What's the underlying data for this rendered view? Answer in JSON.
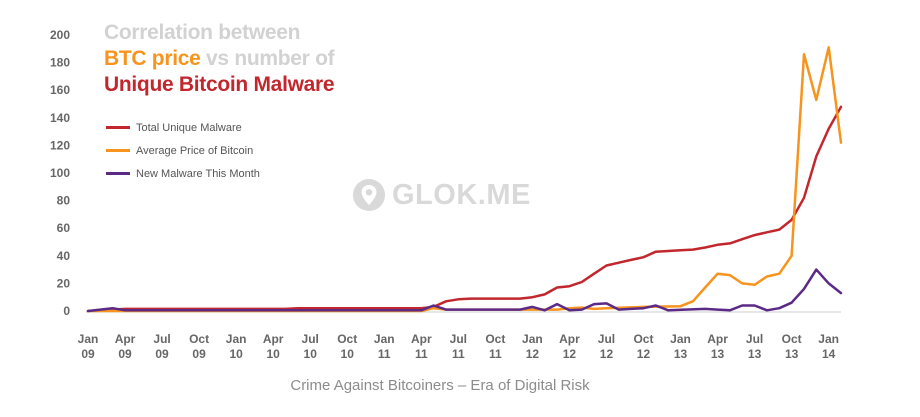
{
  "title": {
    "line1": "Correlation between",
    "btc": "BTC price",
    "vs": " vs ",
    "number_of": "number of",
    "line3": "Unique Bitcoin Malware"
  },
  "watermark": "GLOK.ME",
  "caption": "Crime Against Bitcoiners – Era of Digital Risk",
  "colors": {
    "total": "#c1272d",
    "price": "#f7941d",
    "new": "#5b2a86",
    "title_grey": "#d2d2d2",
    "axis": "#cccccc"
  },
  "chart_data": {
    "type": "line",
    "ylim": [
      0,
      200
    ],
    "yticks": [
      0,
      20,
      40,
      60,
      80,
      100,
      120,
      140,
      160,
      180,
      200
    ],
    "xlim": [
      0,
      61
    ],
    "xticks": [
      {
        "x": 0,
        "l1": "Jan",
        "l2": "09"
      },
      {
        "x": 3,
        "l1": "Apr",
        "l2": "09"
      },
      {
        "x": 6,
        "l1": "Jul",
        "l2": "09"
      },
      {
        "x": 9,
        "l1": "Oct",
        "l2": "09"
      },
      {
        "x": 12,
        "l1": "Jan",
        "l2": "10"
      },
      {
        "x": 15,
        "l1": "Apr",
        "l2": "10"
      },
      {
        "x": 18,
        "l1": "Jul",
        "l2": "10"
      },
      {
        "x": 21,
        "l1": "Oct",
        "l2": "10"
      },
      {
        "x": 24,
        "l1": "Jan",
        "l2": "11"
      },
      {
        "x": 27,
        "l1": "Apr",
        "l2": "11"
      },
      {
        "x": 30,
        "l1": "Jul",
        "l2": "11"
      },
      {
        "x": 33,
        "l1": "Oct",
        "l2": "11"
      },
      {
        "x": 36,
        "l1": "Jan",
        "l2": "12"
      },
      {
        "x": 39,
        "l1": "Apr",
        "l2": "12"
      },
      {
        "x": 42,
        "l1": "Jul",
        "l2": "12"
      },
      {
        "x": 45,
        "l1": "Oct",
        "l2": "12"
      },
      {
        "x": 48,
        "l1": "Jan",
        "l2": "13"
      },
      {
        "x": 51,
        "l1": "Apr",
        "l2": "13"
      },
      {
        "x": 54,
        "l1": "Jul",
        "l2": "13"
      },
      {
        "x": 57,
        "l1": "Oct",
        "l2": "13"
      },
      {
        "x": 60,
        "l1": "Jan",
        "l2": "14"
      }
    ],
    "legend": "top-left",
    "grid": false,
    "series": [
      {
        "name": "Total Unique Malware",
        "color": "#c1272d",
        "points": [
          [
            0,
            0
          ],
          [
            1,
            0.5
          ],
          [
            2,
            1
          ],
          [
            3,
            1.5
          ],
          [
            4,
            1.5
          ],
          [
            10,
            1.5
          ],
          [
            16,
            1.5
          ],
          [
            17,
            2
          ],
          [
            27,
            2
          ],
          [
            28,
            3
          ],
          [
            29,
            7
          ],
          [
            30,
            8.5
          ],
          [
            31,
            9
          ],
          [
            35,
            9
          ],
          [
            36,
            10
          ],
          [
            37,
            12
          ],
          [
            38,
            17
          ],
          [
            39,
            18
          ],
          [
            40,
            21
          ],
          [
            41,
            27
          ],
          [
            42,
            33
          ],
          [
            43,
            35
          ],
          [
            44,
            37
          ],
          [
            45,
            39
          ],
          [
            46,
            43
          ],
          [
            47,
            43.5
          ],
          [
            48,
            44
          ],
          [
            49,
            44.5
          ],
          [
            50,
            46
          ],
          [
            51,
            48
          ],
          [
            52,
            49
          ],
          [
            53,
            52
          ],
          [
            54,
            55
          ],
          [
            55,
            57
          ],
          [
            56,
            59
          ],
          [
            57,
            66
          ],
          [
            58,
            82
          ],
          [
            59,
            112
          ],
          [
            60,
            132
          ],
          [
            61,
            148
          ]
        ]
      },
      {
        "name": "Average Price of Bitcoin",
        "color": "#f7941d",
        "points": [
          [
            0,
            0
          ],
          [
            27,
            0
          ],
          [
            28,
            2
          ],
          [
            29,
            1
          ],
          [
            36,
            1
          ],
          [
            38,
            1
          ],
          [
            39,
            2
          ],
          [
            40,
            2.5
          ],
          [
            41,
            1.5
          ],
          [
            42,
            2
          ],
          [
            45,
            3
          ],
          [
            48,
            3.5
          ],
          [
            49,
            7
          ],
          [
            50,
            17
          ],
          [
            51,
            27
          ],
          [
            52,
            26
          ],
          [
            53,
            20
          ],
          [
            54,
            19
          ],
          [
            55,
            25
          ],
          [
            56,
            27
          ],
          [
            57,
            40
          ],
          [
            58,
            186
          ],
          [
            59,
            153
          ],
          [
            60,
            191
          ],
          [
            61,
            122
          ]
        ]
      },
      {
        "name": "New Malware This Month",
        "color": "#5b2a86",
        "points": [
          [
            0,
            0
          ],
          [
            1,
            1
          ],
          [
            2,
            2
          ],
          [
            3,
            0.5
          ],
          [
            12,
            0.5
          ],
          [
            27,
            0.5
          ],
          [
            28,
            4
          ],
          [
            29,
            1
          ],
          [
            35,
            1
          ],
          [
            36,
            3
          ],
          [
            37,
            0.5
          ],
          [
            38,
            5
          ],
          [
            39,
            0.5
          ],
          [
            40,
            1
          ],
          [
            41,
            5
          ],
          [
            42,
            5.5
          ],
          [
            43,
            1
          ],
          [
            44,
            1.5
          ],
          [
            45,
            2
          ],
          [
            46,
            4
          ],
          [
            47,
            0.5
          ],
          [
            50,
            1.5
          ],
          [
            51,
            1
          ],
          [
            52,
            0.5
          ],
          [
            53,
            4
          ],
          [
            54,
            4
          ],
          [
            55,
            0.5
          ],
          [
            56,
            2
          ],
          [
            57,
            6
          ],
          [
            58,
            16
          ],
          [
            59,
            30
          ],
          [
            60,
            20
          ],
          [
            61,
            13
          ]
        ]
      }
    ]
  }
}
